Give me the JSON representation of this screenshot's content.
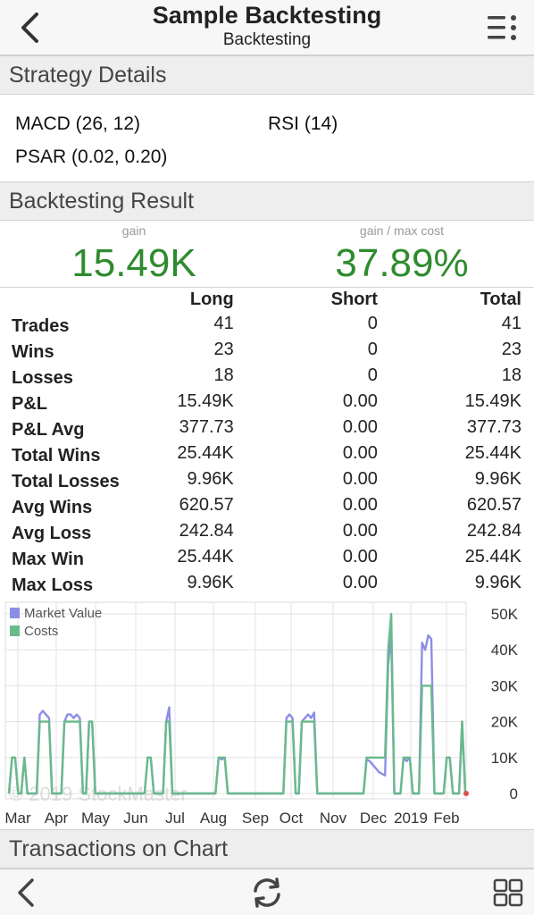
{
  "nav": {
    "title": "Sample Backtesting",
    "subtitle": "Backtesting"
  },
  "strategy": {
    "header": "Strategy Details",
    "items": [
      "MACD (26, 12)",
      "RSI (14)",
      "PSAR (0.02, 0.20)"
    ]
  },
  "result": {
    "header": "Backtesting Result",
    "gain_label": "gain",
    "gain_value": "15.49K",
    "ratio_label": "gain / max cost",
    "ratio_value": "37.89%",
    "columns": [
      "",
      "Long",
      "Short",
      "Total"
    ],
    "rows": [
      [
        "Trades",
        "41",
        "0",
        "41"
      ],
      [
        "Wins",
        "23",
        "0",
        "23"
      ],
      [
        "Losses",
        "18",
        "0",
        "18"
      ],
      [
        "P&L",
        "15.49K",
        "0.00",
        "15.49K"
      ],
      [
        "P&L Avg",
        "377.73",
        "0.00",
        "377.73"
      ],
      [
        "Total Wins",
        "25.44K",
        "0.00",
        "25.44K"
      ],
      [
        "Total Losses",
        "9.96K",
        "0.00",
        "9.96K"
      ],
      [
        "Avg Wins",
        "620.57",
        "0.00",
        "620.57"
      ],
      [
        "Avg Loss",
        "242.84",
        "0.00",
        "242.84"
      ],
      [
        "Max Win",
        "25.44K",
        "0.00",
        "25.44K"
      ],
      [
        "Max Loss",
        "9.96K",
        "0.00",
        "9.96K"
      ]
    ]
  },
  "chart_data": {
    "type": "area",
    "watermark": "© 2019 StockMaster",
    "y_ticks": [
      "50K",
      "40K",
      "30K",
      "20K",
      "10K",
      "0"
    ],
    "ylim": [
      0,
      50000
    ],
    "x_ticks": [
      "Mar",
      "Apr",
      "May",
      "Jun",
      "Jul",
      "Aug",
      "Sep",
      "Oct",
      "Nov",
      "Dec",
      "2019",
      "Feb"
    ],
    "grid": true,
    "legend_position": "top-left",
    "series": [
      {
        "name": "Market Value",
        "color": "#8c8ee6",
        "values": [
          0,
          10000,
          10000,
          0,
          0,
          10000,
          0,
          0,
          0,
          0,
          22000,
          23000,
          22000,
          21000,
          0,
          0,
          0,
          0,
          20000,
          22000,
          22000,
          21000,
          22000,
          21000,
          0,
          0,
          20000,
          20000,
          0,
          0,
          0,
          0,
          0,
          0,
          0,
          0,
          0,
          0,
          0,
          0,
          0,
          0,
          0,
          0,
          0,
          10000,
          10000,
          0,
          0,
          0,
          0,
          20000,
          24000,
          0,
          0,
          0,
          0,
          0,
          0,
          0,
          0,
          0,
          0,
          0,
          0,
          0,
          0,
          0,
          10000,
          9500,
          10000,
          0,
          0,
          0,
          0,
          0,
          0,
          0,
          0,
          0,
          0,
          0,
          0,
          0,
          0,
          0,
          0,
          0,
          0,
          0,
          21000,
          22000,
          21000,
          0,
          0,
          20000,
          21000,
          22000,
          21000,
          22500,
          0,
          0,
          0,
          0,
          0,
          0,
          0,
          0,
          0,
          0,
          0,
          0,
          0,
          0,
          0,
          0,
          9500,
          9000,
          8000,
          7000,
          6000,
          5500,
          5000,
          36000,
          44000,
          0,
          0,
          0,
          10000,
          9000,
          10000,
          0,
          0,
          0,
          42000,
          40000,
          44000,
          43000,
          0,
          0,
          0,
          0,
          10000,
          10000,
          0,
          0,
          0,
          20000,
          0
        ]
      },
      {
        "name": "Costs",
        "color": "#6aba8a",
        "values": [
          0,
          10000,
          10000,
          0,
          0,
          10000,
          0,
          0,
          0,
          0,
          20000,
          20000,
          20000,
          20000,
          0,
          0,
          0,
          0,
          20000,
          20000,
          20000,
          20000,
          20000,
          20000,
          0,
          0,
          20000,
          20000,
          0,
          0,
          0,
          0,
          0,
          0,
          0,
          0,
          0,
          0,
          0,
          0,
          0,
          0,
          0,
          0,
          0,
          10000,
          10000,
          0,
          0,
          0,
          0,
          20000,
          20000,
          0,
          0,
          0,
          0,
          0,
          0,
          0,
          0,
          0,
          0,
          0,
          0,
          0,
          0,
          0,
          10000,
          10000,
          10000,
          0,
          0,
          0,
          0,
          0,
          0,
          0,
          0,
          0,
          0,
          0,
          0,
          0,
          0,
          0,
          0,
          0,
          0,
          0,
          20000,
          20000,
          20000,
          0,
          0,
          20000,
          20000,
          20000,
          20000,
          20000,
          0,
          0,
          0,
          0,
          0,
          0,
          0,
          0,
          0,
          0,
          0,
          0,
          0,
          0,
          0,
          0,
          10000,
          10000,
          10000,
          10000,
          10000,
          10000,
          10000,
          40000,
          50000,
          0,
          0,
          0,
          10000,
          10000,
          10000,
          0,
          0,
          0,
          30000,
          30000,
          30000,
          30000,
          0,
          0,
          0,
          0,
          10000,
          10000,
          0,
          0,
          0,
          20000,
          0
        ]
      }
    ]
  },
  "transactions": {
    "header": "Transactions on Chart"
  },
  "icons": {
    "back": "chevron-left-icon",
    "menu": "menu-list-icon",
    "refresh": "refresh-icon",
    "grid": "grid-icon"
  }
}
